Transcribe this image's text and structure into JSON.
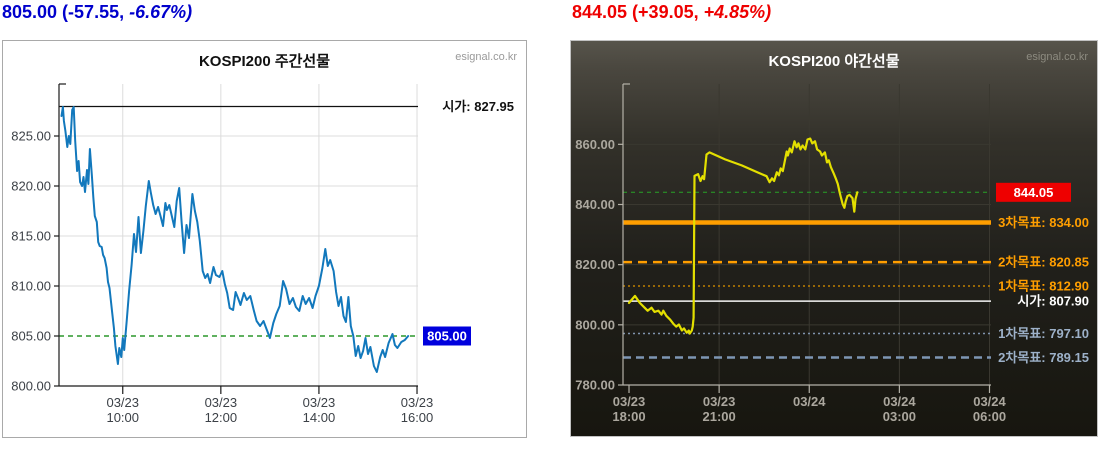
{
  "header_left": {
    "prefix": "805.00 (-57.55,",
    "italic": "-6.67%)"
  },
  "header_right": {
    "prefix": "844.05 (+39.05,",
    "italic": "+4.85%)"
  },
  "chart_data": [
    {
      "id": "day",
      "type": "line",
      "title": "KOSPI200 주간선물",
      "watermark": "esignal.co.kr",
      "x_domain": [
        8.7,
        16.02
      ],
      "y_domain": [
        800,
        830.2
      ],
      "grid_color": "#dcdcdc",
      "axis_color": "#1a1a1a",
      "label_color": "#3c4147",
      "label_bold": false,
      "y_ticks": [
        {
          "v": 800,
          "label": "800.00",
          "grid": false
        },
        {
          "v": 805,
          "label": "805.00",
          "grid": false
        },
        {
          "v": 810,
          "label": "810.00",
          "grid": true
        },
        {
          "v": 815,
          "label": "815.00",
          "grid": true
        },
        {
          "v": 820,
          "label": "820.00",
          "grid": true
        },
        {
          "v": 825,
          "label": "825.00",
          "grid": true
        }
      ],
      "x_ticks": [
        {
          "t": 10,
          "lines": [
            "03/23",
            "10:00"
          ],
          "grid": true
        },
        {
          "t": 12,
          "lines": [
            "03/23",
            "12:00"
          ],
          "grid": true
        },
        {
          "t": 14,
          "lines": [
            "03/23",
            "14:00"
          ],
          "grid": true
        },
        {
          "t": 16,
          "lines": [
            "03/23",
            "16:00"
          ],
          "grid": true
        }
      ],
      "ref_lines": [
        {
          "value": 827.95,
          "color": "#111111",
          "width": 1.3,
          "dash": "",
          "label": "시가: 827.95",
          "label_color": "#111111"
        },
        {
          "value": 805.0,
          "color": "#008200",
          "width": 1.2,
          "dash": "5,4"
        }
      ],
      "end_label": {
        "text": "805.00",
        "value": 805.0,
        "bg": "#0000dd",
        "fg": "#ffffff"
      },
      "series": {
        "name": "KOSPI200 주간선물 price",
        "color": "#1278bc",
        "width": 2,
        "points": [
          [
            8.75,
            827.0
          ],
          [
            8.78,
            827.9
          ],
          [
            8.8,
            826.5
          ],
          [
            8.83,
            825.5
          ],
          [
            8.87,
            823.9
          ],
          [
            8.9,
            825.0
          ],
          [
            8.93,
            824.2
          ],
          [
            8.97,
            827.6
          ],
          [
            9.0,
            827.9
          ],
          [
            9.03,
            824.5
          ],
          [
            9.07,
            821.5
          ],
          [
            9.1,
            822.5
          ],
          [
            9.13,
            820.4
          ],
          [
            9.17,
            820.0
          ],
          [
            9.2,
            820.9
          ],
          [
            9.23,
            819.4
          ],
          [
            9.27,
            821.6
          ],
          [
            9.3,
            820.2
          ],
          [
            9.33,
            823.7
          ],
          [
            9.37,
            821.0
          ],
          [
            9.4,
            818.9
          ],
          [
            9.43,
            817.0
          ],
          [
            9.47,
            816.4
          ],
          [
            9.5,
            814.4
          ],
          [
            9.53,
            814.0
          ],
          [
            9.57,
            813.9
          ],
          [
            9.6,
            813.1
          ],
          [
            9.63,
            812.8
          ],
          [
            9.67,
            811.8
          ],
          [
            9.7,
            810.4
          ],
          [
            9.73,
            809.8
          ],
          [
            9.78,
            807.5
          ],
          [
            9.82,
            805.8
          ],
          [
            9.85,
            804.0
          ],
          [
            9.9,
            802.2
          ],
          [
            9.93,
            803.8
          ],
          [
            9.97,
            802.9
          ],
          [
            10.0,
            804.8
          ],
          [
            10.03,
            803.6
          ],
          [
            10.08,
            806.5
          ],
          [
            10.13,
            809.5
          ],
          [
            10.18,
            812.1
          ],
          [
            10.23,
            815.2
          ],
          [
            10.27,
            813.4
          ],
          [
            10.32,
            816.9
          ],
          [
            10.37,
            813.3
          ],
          [
            10.42,
            815.5
          ],
          [
            10.47,
            818.0
          ],
          [
            10.53,
            820.5
          ],
          [
            10.57,
            819.4
          ],
          [
            10.62,
            818.1
          ],
          [
            10.67,
            817.2
          ],
          [
            10.72,
            817.9
          ],
          [
            10.77,
            817.0
          ],
          [
            10.82,
            816.0
          ],
          [
            10.87,
            818.3
          ],
          [
            10.9,
            817.6
          ],
          [
            10.95,
            818.1
          ],
          [
            11.0,
            817.0
          ],
          [
            11.05,
            815.9
          ],
          [
            11.1,
            818.5
          ],
          [
            11.15,
            819.8
          ],
          [
            11.2,
            816.4
          ],
          [
            11.25,
            813.3
          ],
          [
            11.3,
            816.1
          ],
          [
            11.35,
            814.8
          ],
          [
            11.42,
            819.2
          ],
          [
            11.47,
            817.5
          ],
          [
            11.52,
            816.4
          ],
          [
            11.57,
            814.5
          ],
          [
            11.63,
            811.5
          ],
          [
            11.68,
            810.8
          ],
          [
            11.73,
            811.2
          ],
          [
            11.78,
            810.3
          ],
          [
            11.85,
            811.9
          ],
          [
            11.9,
            811.1
          ],
          [
            11.97,
            810.9
          ],
          [
            12.03,
            811.5
          ],
          [
            12.08,
            810.2
          ],
          [
            12.13,
            809.3
          ],
          [
            12.18,
            807.8
          ],
          [
            12.25,
            807.6
          ],
          [
            12.3,
            809.4
          ],
          [
            12.35,
            808.8
          ],
          [
            12.4,
            808.1
          ],
          [
            12.47,
            809.3
          ],
          [
            12.53,
            808.6
          ],
          [
            12.6,
            809.0
          ],
          [
            12.67,
            807.6
          ],
          [
            12.73,
            806.5
          ],
          [
            12.8,
            806.0
          ],
          [
            12.87,
            806.5
          ],
          [
            12.93,
            805.7
          ],
          [
            13.0,
            804.8
          ],
          [
            13.07,
            806.3
          ],
          [
            13.13,
            807.2
          ],
          [
            13.2,
            808.0
          ],
          [
            13.27,
            810.5
          ],
          [
            13.33,
            809.7
          ],
          [
            13.4,
            808.2
          ],
          [
            13.47,
            808.8
          ],
          [
            13.53,
            807.9
          ],
          [
            13.6,
            807.5
          ],
          [
            13.67,
            809.0
          ],
          [
            13.73,
            808.2
          ],
          [
            13.8,
            808.8
          ],
          [
            13.87,
            807.8
          ],
          [
            13.93,
            809.0
          ],
          [
            14.0,
            810.0
          ],
          [
            14.07,
            811.8
          ],
          [
            14.13,
            813.7
          ],
          [
            14.18,
            812.0
          ],
          [
            14.23,
            812.6
          ],
          [
            14.3,
            811.5
          ],
          [
            14.35,
            809.4
          ],
          [
            14.4,
            808.0
          ],
          [
            14.45,
            808.9
          ],
          [
            14.5,
            807.0
          ],
          [
            14.55,
            806.4
          ],
          [
            14.6,
            808.9
          ],
          [
            14.65,
            806.0
          ],
          [
            14.7,
            805.0
          ],
          [
            14.75,
            803.0
          ],
          [
            14.8,
            804.0
          ],
          [
            14.85,
            802.8
          ],
          [
            14.9,
            803.5
          ],
          [
            14.95,
            804.8
          ],
          [
            15.0,
            803.2
          ],
          [
            15.05,
            803.9
          ],
          [
            15.12,
            802.0
          ],
          [
            15.18,
            801.4
          ],
          [
            15.25,
            802.9
          ],
          [
            15.3,
            803.6
          ],
          [
            15.35,
            802.9
          ],
          [
            15.42,
            804.3
          ],
          [
            15.5,
            805.2
          ],
          [
            15.55,
            804.1
          ],
          [
            15.6,
            803.8
          ],
          [
            15.68,
            804.4
          ],
          [
            15.75,
            804.6
          ],
          [
            15.82,
            805.0
          ]
        ]
      }
    },
    {
      "id": "night",
      "type": "line",
      "title": "KOSPI200 야간선물",
      "watermark": "esignal.co.kr",
      "x_domain": [
        17.8,
        30.05
      ],
      "y_domain": [
        780,
        880.05
      ],
      "grid_color": "#3a3830",
      "axis_color": "#b5b2a8",
      "label_color": "#aba79e",
      "label_bold": true,
      "y_ticks": [
        {
          "v": 780,
          "label": "780.00",
          "grid": false
        },
        {
          "v": 800,
          "label": "800.00",
          "grid": true
        },
        {
          "v": 820,
          "label": "820.00",
          "grid": true
        },
        {
          "v": 840,
          "label": "840.00",
          "grid": true
        },
        {
          "v": 860,
          "label": "860.00",
          "grid": true
        }
      ],
      "x_ticks": [
        {
          "t": 18,
          "lines": [
            "03/23",
            "18:00"
          ],
          "grid": false
        },
        {
          "t": 21,
          "lines": [
            "03/23",
            "21:00"
          ],
          "grid": true
        },
        {
          "t": 24,
          "lines": [
            "03/24"
          ],
          "grid": true
        },
        {
          "t": 27,
          "lines": [
            "03/24",
            "03:00"
          ],
          "grid": true
        },
        {
          "t": 30,
          "lines": [
            "03/24",
            "06:00"
          ],
          "grid": true
        }
      ],
      "ref_lines": [
        {
          "value": 844.05,
          "color": "#27a227",
          "width": 1,
          "dash": "4,4"
        },
        {
          "value": 834.0,
          "color": "#ff9e00",
          "width": 4.5,
          "dash": "",
          "label": "3차목표: 834.00",
          "label_color": "#ff9e00"
        },
        {
          "value": 820.85,
          "color": "#ff9e00",
          "width": 2.5,
          "dash": "9,6",
          "label": "2차목표: 820.85",
          "label_color": "#ff9e00"
        },
        {
          "value": 812.9,
          "color": "#c08000",
          "width": 1.5,
          "dash": "2,3",
          "label": "1차목표: 812.90",
          "label_color": "#ff9e00"
        },
        {
          "value": 807.9,
          "color": "#f5f5f5",
          "width": 1.5,
          "dash": "",
          "label": "시가: 807.90",
          "label_color": "#ffffff"
        },
        {
          "value": 797.1,
          "color": "#8094ad",
          "width": 1.5,
          "dash": "2,3",
          "label": "1차목표: 797.10",
          "label_color": "#9db1c9"
        },
        {
          "value": 789.15,
          "color": "#7e96b4",
          "width": 2.5,
          "dash": "8,5",
          "label": "2차목표: 789.15",
          "label_color": "#9db1c9"
        }
      ],
      "end_label": {
        "text": "844.05",
        "value": 844.05,
        "bg": "#ee0000",
        "fg": "#ffffff"
      },
      "series": {
        "name": "KOSPI200 야간선물 price",
        "color": "#e3df00",
        "width": 2.2,
        "points": [
          [
            18.0,
            807.3
          ],
          [
            18.2,
            809.6
          ],
          [
            18.36,
            807.3
          ],
          [
            18.52,
            805.7
          ],
          [
            18.62,
            804.7
          ],
          [
            18.75,
            805.7
          ],
          [
            18.85,
            804.3
          ],
          [
            18.98,
            804.7
          ],
          [
            19.08,
            803.4
          ],
          [
            19.14,
            804.7
          ],
          [
            19.24,
            803.0
          ],
          [
            19.37,
            801.7
          ],
          [
            19.47,
            800.4
          ],
          [
            19.57,
            799.4
          ],
          [
            19.66,
            800.1
          ],
          [
            19.76,
            798.1
          ],
          [
            19.83,
            798.8
          ],
          [
            19.92,
            797.4
          ],
          [
            19.99,
            798.1
          ],
          [
            20.02,
            797.1
          ],
          [
            20.09,
            798.1
          ],
          [
            20.12,
            799.4
          ],
          [
            20.15,
            802.4
          ],
          [
            20.18,
            849.5
          ],
          [
            20.3,
            850.1
          ],
          [
            20.38,
            847.8
          ],
          [
            20.45,
            849.4
          ],
          [
            20.5,
            848.4
          ],
          [
            20.58,
            856.6
          ],
          [
            20.68,
            857.3
          ],
          [
            21.2,
            855.0
          ],
          [
            21.75,
            853.0
          ],
          [
            22.27,
            850.7
          ],
          [
            22.58,
            849.4
          ],
          [
            22.68,
            847.4
          ],
          [
            22.76,
            848.7
          ],
          [
            22.83,
            847.8
          ],
          [
            22.92,
            850.7
          ],
          [
            22.99,
            849.7
          ],
          [
            23.05,
            852.0
          ],
          [
            23.12,
            851.1
          ],
          [
            23.25,
            857.6
          ],
          [
            23.29,
            856.3
          ],
          [
            23.35,
            858.6
          ],
          [
            23.42,
            857.3
          ],
          [
            23.51,
            861.0
          ],
          [
            23.58,
            859.0
          ],
          [
            23.64,
            860.3
          ],
          [
            23.71,
            858.3
          ],
          [
            23.78,
            859.6
          ],
          [
            23.87,
            858.3
          ],
          [
            23.94,
            861.6
          ],
          [
            24.03,
            861.9
          ],
          [
            24.1,
            860.3
          ],
          [
            24.19,
            861.0
          ],
          [
            24.26,
            858.3
          ],
          [
            24.36,
            857.6
          ],
          [
            24.42,
            856.3
          ],
          [
            24.52,
            857.3
          ],
          [
            24.59,
            854.0
          ],
          [
            24.65,
            854.7
          ],
          [
            24.72,
            852.4
          ],
          [
            24.81,
            850.4
          ],
          [
            24.88,
            848.7
          ],
          [
            24.95,
            846.8
          ],
          [
            25.01,
            844.1
          ],
          [
            25.05,
            842.5
          ],
          [
            25.11,
            840.2
          ],
          [
            25.17,
            838.9
          ],
          [
            25.21,
            840.9
          ],
          [
            25.27,
            842.8
          ],
          [
            25.34,
            843.2
          ],
          [
            25.38,
            842.8
          ],
          [
            25.44,
            842.1
          ],
          [
            25.5,
            837.6
          ],
          [
            25.54,
            841.8
          ],
          [
            25.6,
            844.05
          ]
        ]
      }
    }
  ]
}
